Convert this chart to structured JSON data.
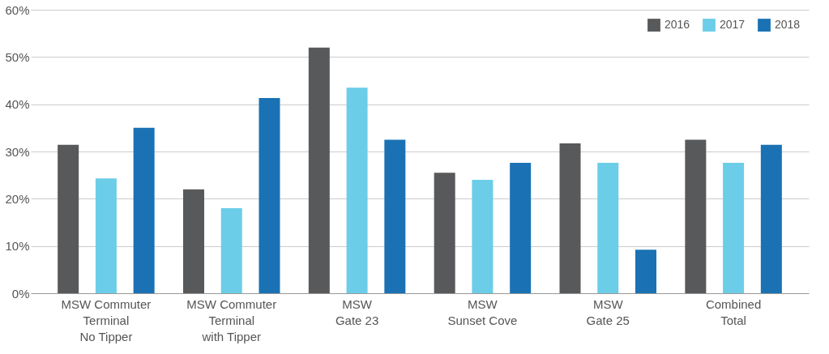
{
  "chart_data": {
    "type": "bar",
    "categories": [
      "MSW Commuter\nTerminal\nNo Tipper",
      "MSW Commuter\nTerminal\nwith Tipper",
      "MSW\nGate 23",
      "MSW\nSunset Cove",
      "MSW\nGate 25",
      "Combined\nTotal"
    ],
    "series": [
      {
        "name": "2016",
        "color": "#58595b",
        "values": [
          31.4,
          22.0,
          52.0,
          25.5,
          31.7,
          32.5
        ]
      },
      {
        "name": "2017",
        "color": "#6bcde8",
        "values": [
          24.3,
          18.0,
          43.5,
          24.0,
          27.6,
          27.6
        ]
      },
      {
        "name": "2018",
        "color": "#1a72b4",
        "values": [
          35.0,
          41.3,
          32.5,
          27.6,
          9.2,
          31.4
        ]
      }
    ],
    "ylim": [
      0,
      60
    ],
    "yticks": [
      {
        "value": 0,
        "label": "0%"
      },
      {
        "value": 10,
        "label": "10%"
      },
      {
        "value": 20,
        "label": "20%"
      },
      {
        "value": 30,
        "label": "30%"
      },
      {
        "value": 40,
        "label": "40%"
      },
      {
        "value": 50,
        "label": "50%"
      },
      {
        "value": 60,
        "label": "60%"
      }
    ],
    "grid": "y",
    "legend": "top right"
  }
}
